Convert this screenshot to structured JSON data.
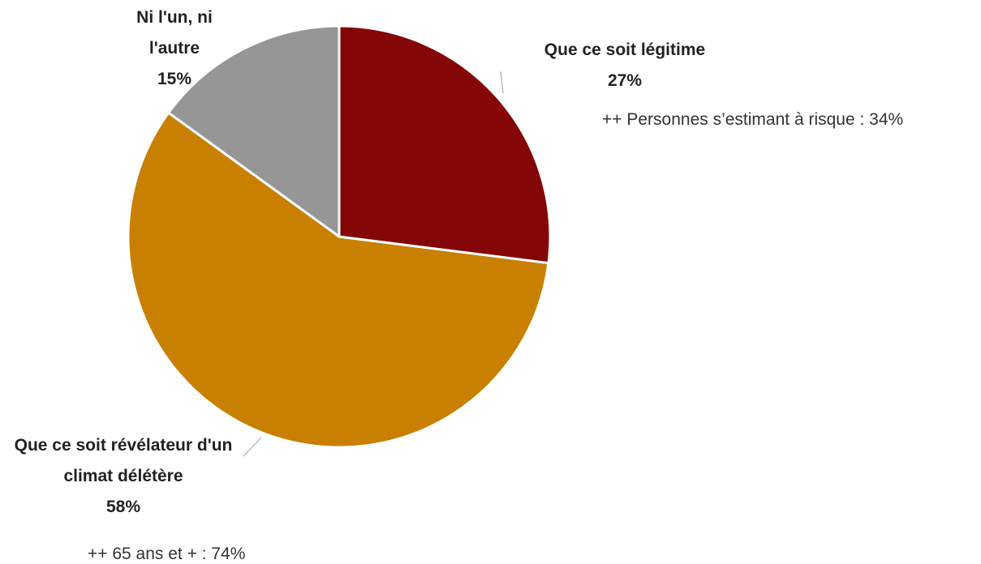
{
  "chart_data": {
    "type": "pie",
    "categories": [
      "Que ce soit légitime",
      "Que ce soit révélateur d'un climat délétère",
      "Ni l'un, ni l'autre"
    ],
    "values": [
      27,
      58,
      15
    ],
    "value_labels": [
      "27%",
      "58%",
      "15%"
    ],
    "colors": [
      "#840606",
      "#c98000",
      "#969696"
    ],
    "annotations": [
      "++ Personnes s’estimant à risque : 34%",
      "++ 65 ans et + : 74%"
    ]
  }
}
